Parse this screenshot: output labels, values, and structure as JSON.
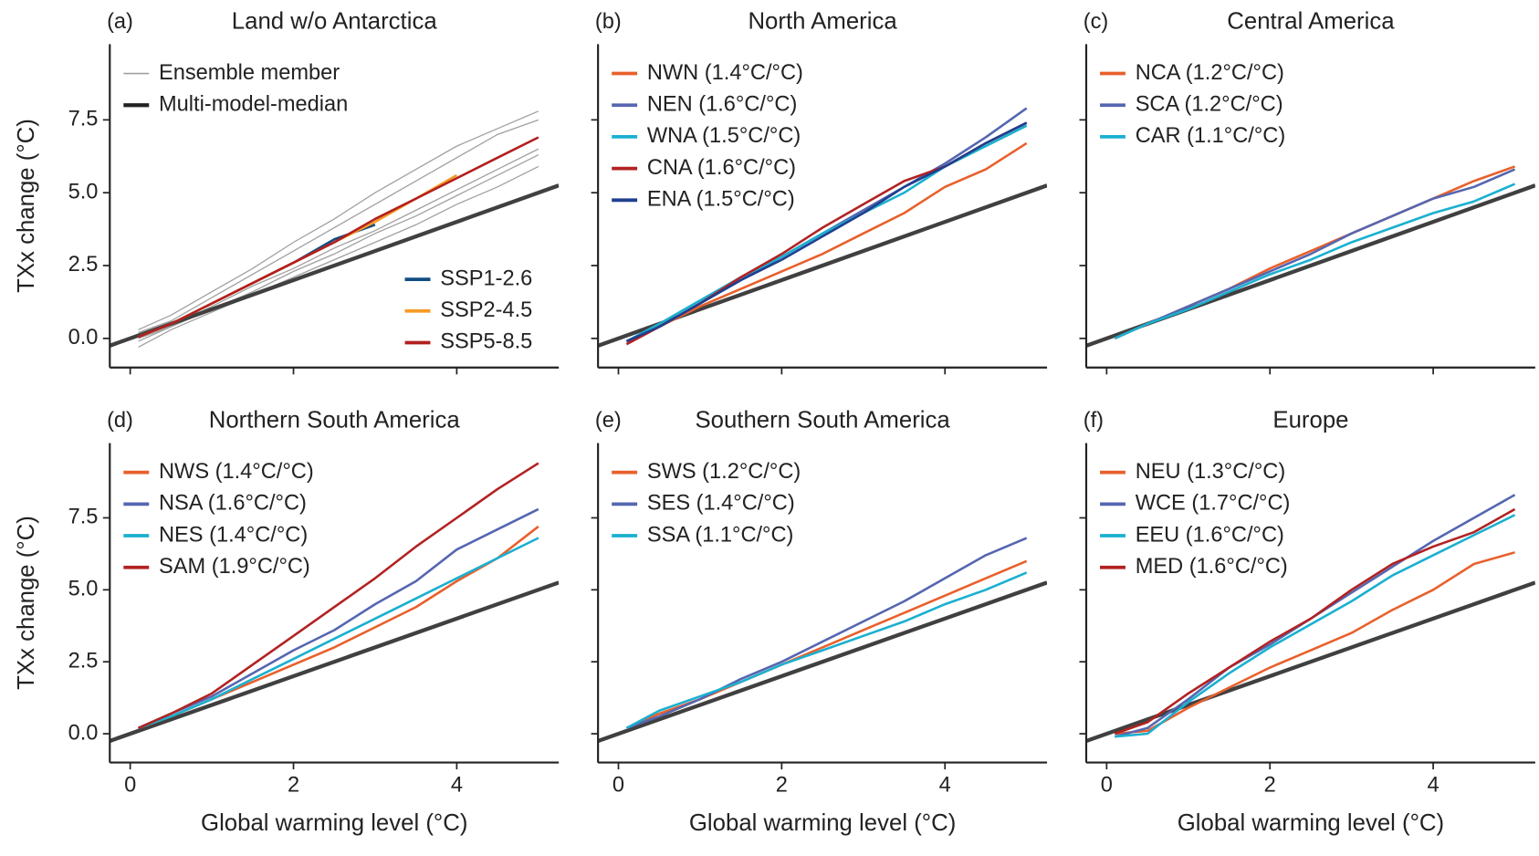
{
  "chart_data": [
    {
      "type": "line",
      "panel": "(a)",
      "title": "Land w/o Antarctica",
      "ylabel": "TXx change (°C)",
      "show_xtick_labels": false,
      "x": [
        0.1,
        0.5,
        1,
        1.5,
        2,
        2.5,
        3,
        3.5,
        4,
        4.5,
        5
      ],
      "xlim": [
        -0.25,
        5.25
      ],
      "ylim": [
        -1.0,
        10.1
      ],
      "xticks": [
        0,
        2,
        4
      ],
      "yticks": [
        {
          "value": 0,
          "label": "0.0"
        },
        {
          "value": 2.5,
          "label": "2.5"
        },
        {
          "value": 5,
          "label": "5.0"
        },
        {
          "value": 7.5,
          "label": "7.5"
        }
      ],
      "reference_line": {
        "x": [
          -0.25,
          5.25
        ],
        "values": [
          -0.25,
          5.25
        ],
        "color": "#404040"
      },
      "ensemble": {
        "name": "Ensemble member",
        "color": "#a0a0a0",
        "members": [
          [
            -0.3,
            0.3,
            0.9,
            1.5,
            2.1,
            2.7,
            3.3,
            3.9,
            4.6,
            5.2,
            5.9
          ],
          [
            0.0,
            0.4,
            1.0,
            1.6,
            2.3,
            2.9,
            3.6,
            4.2,
            4.9,
            5.6,
            6.3
          ],
          [
            0.1,
            0.5,
            1.2,
            1.9,
            2.6,
            3.3,
            4.1,
            4.8,
            5.5,
            6.2,
            6.9
          ],
          [
            0.2,
            0.6,
            1.4,
            2.2,
            3.0,
            3.8,
            4.6,
            5.4,
            6.2,
            7.0,
            7.5
          ],
          [
            0.3,
            0.8,
            1.6,
            2.4,
            3.3,
            4.1,
            5.0,
            5.8,
            6.6,
            7.2,
            7.8
          ],
          [
            -0.1,
            0.4,
            1.1,
            1.8,
            2.4,
            3.1,
            3.7,
            4.4,
            5.1,
            5.8,
            6.5
          ]
        ]
      },
      "median": {
        "name": "Multi-model-median",
        "color": "#222222"
      },
      "legend_loc": "lower right",
      "series": [
        {
          "name": "SSP1-2.6",
          "color": "#0f4c81",
          "values": [
            0.05,
            0.5,
            1.2,
            1.9,
            2.6,
            3.4,
            3.9,
            null,
            null,
            null,
            null
          ]
        },
        {
          "name": "SSP2-4.5",
          "color": "#f59a23",
          "values": [
            0.05,
            0.5,
            1.2,
            1.9,
            2.6,
            3.3,
            4.0,
            4.8,
            5.6,
            null,
            null
          ]
        },
        {
          "name": "SSP5-8.5",
          "color": "#b21f1f",
          "values": [
            0.05,
            0.5,
            1.2,
            1.9,
            2.6,
            3.3,
            4.1,
            4.8,
            5.5,
            6.2,
            6.9
          ]
        }
      ]
    },
    {
      "type": "line",
      "panel": "(b)",
      "title": "North America",
      "show_xtick_labels": false,
      "x": [
        0.1,
        0.5,
        1,
        1.5,
        2,
        2.5,
        3,
        3.5,
        4,
        4.5,
        5
      ],
      "xlim": [
        -0.25,
        5.25
      ],
      "ylim": [
        -1.0,
        10.1
      ],
      "xticks": [
        0,
        2,
        4
      ],
      "yticks": [
        0,
        2.5,
        5,
        7.5
      ],
      "reference_line": {
        "x": [
          -0.25,
          5.25
        ],
        "values": [
          -0.25,
          5.25
        ],
        "color": "#404040"
      },
      "legend_loc": "upper left",
      "series": [
        {
          "name": "NWN (1.4°C/°C)",
          "color": "#e8602c",
          "values": [
            -0.1,
            0.4,
            1.1,
            1.7,
            2.3,
            2.9,
            3.6,
            4.3,
            5.2,
            5.8,
            6.7
          ]
        },
        {
          "name": "NEN (1.6°C/°C)",
          "color": "#5566b0",
          "values": [
            -0.1,
            0.4,
            1.2,
            2.0,
            2.8,
            3.6,
            4.4,
            5.2,
            6.0,
            6.9,
            7.9
          ]
        },
        {
          "name": "WNA (1.5°C/°C)",
          "color": "#1ab0d0",
          "values": [
            -0.1,
            0.5,
            1.3,
            2.1,
            2.8,
            3.6,
            4.3,
            5.0,
            5.9,
            6.6,
            7.3
          ]
        },
        {
          "name": "CNA (1.6°C/°C)",
          "color": "#b22222",
          "values": [
            -0.2,
            0.4,
            1.2,
            2.1,
            2.9,
            3.8,
            4.6,
            5.4,
            5.9,
            6.7,
            7.4
          ]
        },
        {
          "name": "ENA (1.5°C/°C)",
          "color": "#1f3f8f",
          "values": [
            -0.1,
            0.4,
            1.2,
            2.0,
            2.7,
            3.5,
            4.3,
            5.2,
            5.9,
            6.7,
            7.4
          ]
        }
      ]
    },
    {
      "type": "line",
      "panel": "(c)",
      "title": "Central America",
      "show_xtick_labels": false,
      "x": [
        0.1,
        0.5,
        1,
        1.5,
        2,
        2.5,
        3,
        3.5,
        4,
        4.5,
        5
      ],
      "xlim": [
        -0.25,
        5.25
      ],
      "ylim": [
        -1.0,
        10.1
      ],
      "xticks": [
        0,
        2,
        4
      ],
      "yticks": [
        0,
        2.5,
        5,
        7.5
      ],
      "reference_line": {
        "x": [
          -0.25,
          5.25
        ],
        "values": [
          -0.25,
          5.25
        ],
        "color": "#404040"
      },
      "legend_loc": "upper left",
      "series": [
        {
          "name": "NCA (1.2°C/°C)",
          "color": "#e8602c",
          "values": [
            0.0,
            0.5,
            1.1,
            1.7,
            2.4,
            3.0,
            3.6,
            4.2,
            4.8,
            5.4,
            5.9
          ]
        },
        {
          "name": "SCA (1.2°C/°C)",
          "color": "#5566b0",
          "values": [
            0.0,
            0.5,
            1.1,
            1.7,
            2.3,
            2.9,
            3.6,
            4.2,
            4.8,
            5.2,
            5.8
          ]
        },
        {
          "name": "CAR (1.1°C/°C)",
          "color": "#1ab0d0",
          "values": [
            0.0,
            0.5,
            1.0,
            1.6,
            2.2,
            2.7,
            3.3,
            3.8,
            4.3,
            4.7,
            5.3
          ]
        }
      ]
    },
    {
      "type": "line",
      "panel": "(d)",
      "title": "Northern South America",
      "ylabel": "TXx change (°C)",
      "xlabel": "Global warming level (°C)",
      "show_xtick_labels": true,
      "x": [
        0.1,
        0.5,
        1,
        1.5,
        2,
        2.5,
        3,
        3.5,
        4,
        4.5,
        5
      ],
      "xlim": [
        -0.25,
        5.25
      ],
      "ylim": [
        -1.0,
        10.1
      ],
      "xticks": [
        0,
        2,
        4
      ],
      "yticks": [
        {
          "value": 0,
          "label": "0.0"
        },
        {
          "value": 2.5,
          "label": "2.5"
        },
        {
          "value": 5,
          "label": "5.0"
        },
        {
          "value": 7.5,
          "label": "7.5"
        }
      ],
      "reference_line": {
        "x": [
          -0.25,
          5.25
        ],
        "values": [
          -0.25,
          5.25
        ],
        "color": "#404040"
      },
      "legend_loc": "upper left",
      "series": [
        {
          "name": "NWS (1.4°C/°C)",
          "color": "#e8602c",
          "values": [
            0.2,
            0.6,
            1.2,
            1.8,
            2.4,
            3.0,
            3.7,
            4.4,
            5.3,
            6.1,
            7.2
          ]
        },
        {
          "name": "NSA (1.6°C/°C)",
          "color": "#5566b0",
          "values": [
            0.2,
            0.7,
            1.3,
            2.1,
            2.9,
            3.6,
            4.5,
            5.3,
            6.4,
            7.1,
            7.8
          ]
        },
        {
          "name": "NES (1.4°C/°C)",
          "color": "#1ab0d0",
          "values": [
            0.2,
            0.6,
            1.2,
            1.9,
            2.6,
            3.3,
            4.0,
            4.7,
            5.4,
            6.1,
            6.8
          ]
        },
        {
          "name": "SAM (1.9°C/°C)",
          "color": "#b22222",
          "values": [
            0.2,
            0.7,
            1.4,
            2.4,
            3.4,
            4.4,
            5.4,
            6.5,
            7.5,
            8.5,
            9.4
          ]
        }
      ]
    },
    {
      "type": "line",
      "panel": "(e)",
      "title": "Southern South America",
      "xlabel": "Global warming level (°C)",
      "show_xtick_labels": true,
      "x": [
        0.1,
        0.5,
        1,
        1.5,
        2,
        2.5,
        3,
        3.5,
        4,
        4.5,
        5
      ],
      "xlim": [
        -0.25,
        5.25
      ],
      "ylim": [
        -1.0,
        10.1
      ],
      "xticks": [
        0,
        2,
        4
      ],
      "yticks": [
        0,
        2.5,
        5,
        7.5
      ],
      "reference_line": {
        "x": [
          -0.25,
          5.25
        ],
        "values": [
          -0.25,
          5.25
        ],
        "color": "#404040"
      },
      "legend_loc": "upper left",
      "series": [
        {
          "name": "SWS (1.2°C/°C)",
          "color": "#e8602c",
          "values": [
            0.2,
            0.7,
            1.2,
            1.8,
            2.4,
            3.0,
            3.6,
            4.2,
            4.8,
            5.4,
            6.0
          ]
        },
        {
          "name": "SES (1.4°C/°C)",
          "color": "#5566b0",
          "values": [
            0.2,
            0.6,
            1.2,
            1.9,
            2.5,
            3.2,
            3.9,
            4.6,
            5.4,
            6.2,
            6.8
          ]
        },
        {
          "name": "SSA (1.1°C/°C)",
          "color": "#1ab0d0",
          "values": [
            0.2,
            0.8,
            1.3,
            1.8,
            2.4,
            2.9,
            3.4,
            3.9,
            4.5,
            5.0,
            5.6
          ]
        }
      ]
    },
    {
      "type": "line",
      "panel": "(f)",
      "title": "Europe",
      "xlabel": "Global warming level (°C)",
      "show_xtick_labels": true,
      "x": [
        0.1,
        0.5,
        1,
        1.5,
        2,
        2.5,
        3,
        3.5,
        4,
        4.5,
        5
      ],
      "xlim": [
        -0.25,
        5.25
      ],
      "ylim": [
        -1.0,
        10.1
      ],
      "xticks": [
        0,
        2,
        4
      ],
      "yticks": [
        0,
        2.5,
        5,
        7.5
      ],
      "reference_line": {
        "x": [
          -0.25,
          5.25
        ],
        "values": [
          -0.25,
          5.25
        ],
        "color": "#404040"
      },
      "legend_loc": "upper left",
      "series": [
        {
          "name": "NEU (1.3°C/°C)",
          "color": "#e8602c",
          "values": [
            0.0,
            0.1,
            0.9,
            1.6,
            2.3,
            2.9,
            3.5,
            4.3,
            5.0,
            5.9,
            6.3
          ]
        },
        {
          "name": "WCE (1.7°C/°C)",
          "color": "#5566b0",
          "values": [
            -0.1,
            0.2,
            1.2,
            2.3,
            3.1,
            4.0,
            4.9,
            5.8,
            6.7,
            7.5,
            8.3
          ]
        },
        {
          "name": "EEU (1.6°C/°C)",
          "color": "#1ab0d0",
          "values": [
            -0.1,
            0.0,
            1.1,
            2.1,
            3.0,
            3.8,
            4.6,
            5.5,
            6.2,
            6.9,
            7.6
          ]
        },
        {
          "name": "MED (1.6°C/°C)",
          "color": "#b22222",
          "values": [
            0.0,
            0.4,
            1.4,
            2.3,
            3.2,
            4.0,
            5.0,
            5.9,
            6.5,
            7.0,
            7.8
          ]
        }
      ]
    }
  ]
}
